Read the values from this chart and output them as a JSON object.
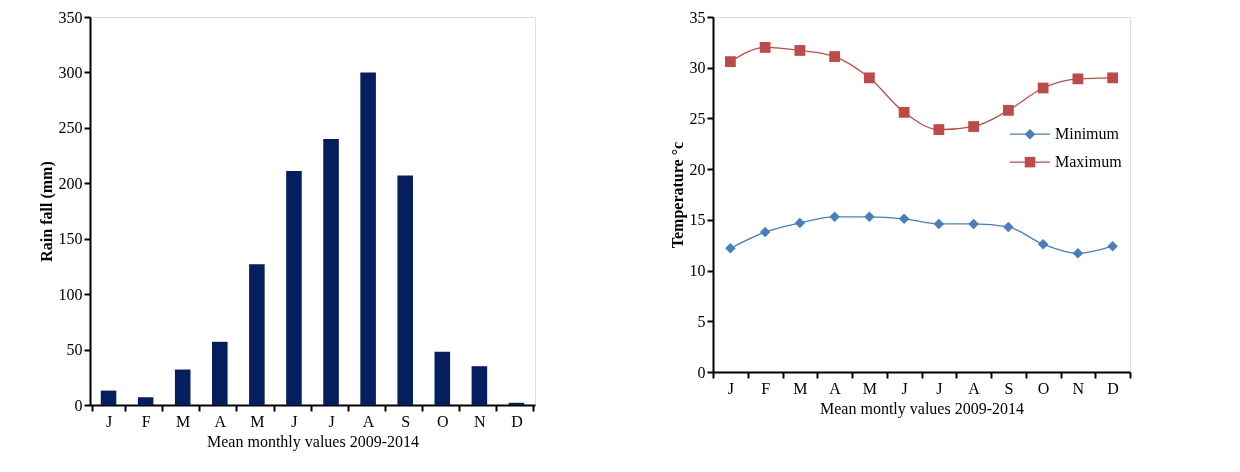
{
  "chart_data": [
    {
      "type": "bar",
      "categories": [
        "J",
        "F",
        "M",
        "A",
        "M",
        "J",
        "J",
        "A",
        "S",
        "O",
        "N",
        "D"
      ],
      "values": [
        13,
        7,
        32,
        57,
        127,
        211,
        240,
        300,
        207,
        48,
        35,
        2
      ],
      "color": "#041e5e",
      "xlabel": "Mean monthly values 2009-2014",
      "ylabel": "Rain fall (mm)",
      "ylim": [
        0,
        350
      ],
      "yticks": [
        0,
        50,
        100,
        150,
        200,
        250,
        300,
        350
      ],
      "grid": false
    },
    {
      "type": "line",
      "categories": [
        "J",
        "F",
        "M",
        "A",
        "M",
        "J",
        "J",
        "A",
        "S",
        "O",
        "N",
        "D"
      ],
      "xlabel": "Mean montly values 2009-2014",
      "ylabel": "Temperature °c",
      "ylim": [
        0,
        35
      ],
      "yticks": [
        0,
        5,
        10,
        15,
        20,
        25,
        30,
        35
      ],
      "grid": false,
      "legend": "right",
      "series": [
        {
          "name": "Minimum",
          "color": "#4a7ebb",
          "marker": "diamond",
          "values": [
            12.2,
            13.8,
            14.7,
            15.3,
            15.3,
            15.1,
            14.6,
            14.6,
            14.3,
            12.6,
            11.7,
            12.4
          ]
        },
        {
          "name": "Maximum",
          "color": "#be4b48",
          "marker": "square",
          "values": [
            30.6,
            32.0,
            31.7,
            31.1,
            29.0,
            25.6,
            23.9,
            24.2,
            25.8,
            28.0,
            28.9,
            29.0
          ]
        }
      ]
    }
  ]
}
